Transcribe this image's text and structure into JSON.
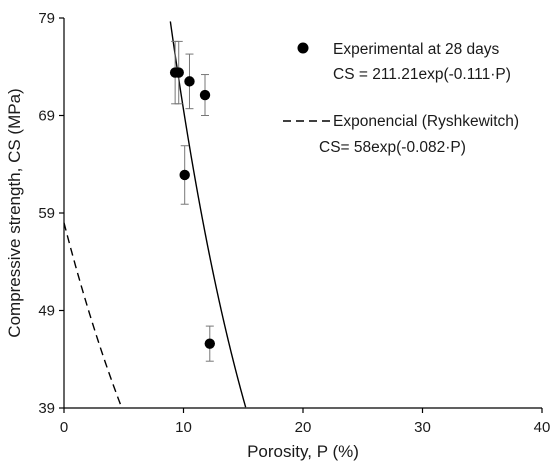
{
  "chart_data": {
    "type": "scatter",
    "xlabel": "Porosity, P (%)",
    "ylabel": "Compressive strength, CS (MPa)",
    "xlim": [
      0,
      40
    ],
    "ylim": [
      39,
      79
    ],
    "xticks": [
      0,
      10,
      20,
      30,
      40
    ],
    "yticks": [
      39,
      49,
      59,
      69,
      79
    ],
    "grid": false,
    "legend_position": "top-right",
    "series": [
      {
        "name": "Experimental at 28 days",
        "kind": "points",
        "marker": "filled-circle",
        "color": "#000000",
        "equation": "CS = 211.21exp(-0.111·P)",
        "points": [
          {
            "x": 9.3,
            "y": 73.4,
            "err": 3.2
          },
          {
            "x": 9.6,
            "y": 73.4,
            "err": 3.2
          },
          {
            "x": 10.5,
            "y": 72.5,
            "err": 2.8
          },
          {
            "x": 11.8,
            "y": 71.1,
            "err": 2.1
          },
          {
            "x": 10.1,
            "y": 62.9,
            "err": 3.0
          },
          {
            "x": 12.2,
            "y": 45.6,
            "err": 1.8
          }
        ]
      },
      {
        "name": "Exponencial (Ryshkewitch)",
        "kind": "curve",
        "line_style": "dashed",
        "color": "#000000",
        "equation": "CS= 58exp(-0.082·P)",
        "a": 58,
        "b": 0.082
      },
      {
        "kind": "curve",
        "line_style": "solid",
        "color": "#000000",
        "a": 211.21,
        "b": 0.111
      }
    ]
  }
}
